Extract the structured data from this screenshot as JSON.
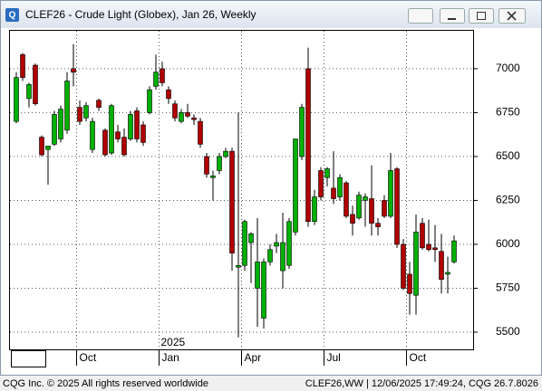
{
  "window_title": "CLEF26 - Crude Light (Globex), Jan 26, Weekly",
  "footer": {
    "left": "CQG Inc. © 2025 All rights reserved worldwide",
    "right": "CLEF26,WW | 12/06/2025 17:49:24, CQG 26.7.8026"
  },
  "chart_data": {
    "type": "candlestick",
    "year_label": "2025",
    "up_color": "#00b000",
    "down_color": "#b00000",
    "grid": true,
    "ylim": [
      5402,
      7216
    ],
    "yticks": [
      5500,
      5750,
      6000,
      6250,
      6500,
      6750,
      7000
    ],
    "xlim": [
      -1,
      72
    ],
    "xticks": [
      {
        "value": 9.5,
        "label": "Oct"
      },
      {
        "value": 22.5,
        "label": "Jan"
      },
      {
        "value": 35.5,
        "label": "Apr"
      },
      {
        "value": 48.5,
        "label": "Jul"
      },
      {
        "value": 61.5,
        "label": "Oct"
      }
    ],
    "open": [
      6700,
      7080,
      6830,
      7020,
      6610,
      6540,
      6570,
      6600,
      6650,
      7000,
      6780,
      6720,
      6540,
      6820,
      6650,
      6520,
      6640,
      6610,
      6600,
      6760,
      6680,
      6750,
      6900,
      7000,
      6880,
      6800,
      6700,
      6750,
      6720,
      6700,
      6500,
      6380,
      6420,
      6500,
      6530,
      5870,
      5880,
      6010,
      5750,
      5580,
      5900,
      5990,
      5850,
      5880,
      6070,
      6500,
      7000,
      6130,
      6420,
      6380,
      6320,
      6270,
      6350,
      6170,
      6150,
      6250,
      6260,
      6120,
      6250,
      6160,
      6430,
      6000,
      5830,
      5710,
      6120,
      6000,
      5980,
      5960,
      5830,
      5900
    ],
    "high": [
      6980,
      7090,
      6920,
      7030,
      6620,
      6560,
      6760,
      6790,
      6980,
      7140,
      6820,
      6810,
      6720,
      6830,
      6660,
      6800,
      6680,
      6660,
      6760,
      6780,
      6700,
      6900,
      7080,
      7040,
      6900,
      6820,
      6770,
      6800,
      6740,
      6720,
      6520,
      6420,
      6520,
      6550,
      6550,
      6750,
      6140,
      6070,
      6150,
      5920,
      6000,
      6060,
      6180,
      6150,
      6600,
      6800,
      7120,
      6310,
      6440,
      6440,
      6530,
      6400,
      6360,
      6220,
      6300,
      6290,
      6450,
      6150,
      6280,
      6520,
      6440,
      6030,
      5900,
      6170,
      6150,
      6140,
      6110,
      6060,
      5930,
      6050
    ],
    "low": [
      6690,
      6930,
      6780,
      6790,
      6500,
      6340,
      6560,
      6580,
      6630,
      6900,
      6680,
      6700,
      6520,
      6760,
      6500,
      6510,
      6580,
      6500,
      6590,
      6580,
      6560,
      6740,
      6880,
      6900,
      6800,
      6700,
      6690,
      6720,
      6680,
      6550,
      6380,
      6250,
      6400,
      6490,
      5850,
      5470,
      5850,
      5780,
      5530,
      5520,
      5880,
      5950,
      5750,
      5860,
      6050,
      6480,
      6100,
      6110,
      6250,
      6330,
      6230,
      6250,
      6150,
      6050,
      6140,
      6100,
      6050,
      6050,
      6150,
      6150,
      5980,
      5740,
      5600,
      5600,
      5970,
      5960,
      5900,
      5720,
      5720,
      5890
    ],
    "close": [
      6950,
      6950,
      6910,
      6800,
      6510,
      6560,
      6740,
      6770,
      6930,
      6980,
      6700,
      6790,
      6700,
      6780,
      6510,
      6790,
      6600,
      6510,
      6740,
      6600,
      6580,
      6880,
      6980,
      6920,
      6830,
      6720,
      6750,
      6730,
      6710,
      6570,
      6400,
      6390,
      6500,
      6530,
      5950,
      5880,
      6130,
      6060,
      5900,
      5900,
      5970,
      6010,
      6010,
      6130,
      6600,
      6780,
      6130,
      6270,
      6270,
      6430,
      6260,
      6380,
      6160,
      6120,
      6280,
      6270,
      6120,
      6100,
      6160,
      6420,
      6000,
      5750,
      5720,
      6070,
      5980,
      5970,
      5970,
      5800,
      5840,
      6020
    ]
  }
}
